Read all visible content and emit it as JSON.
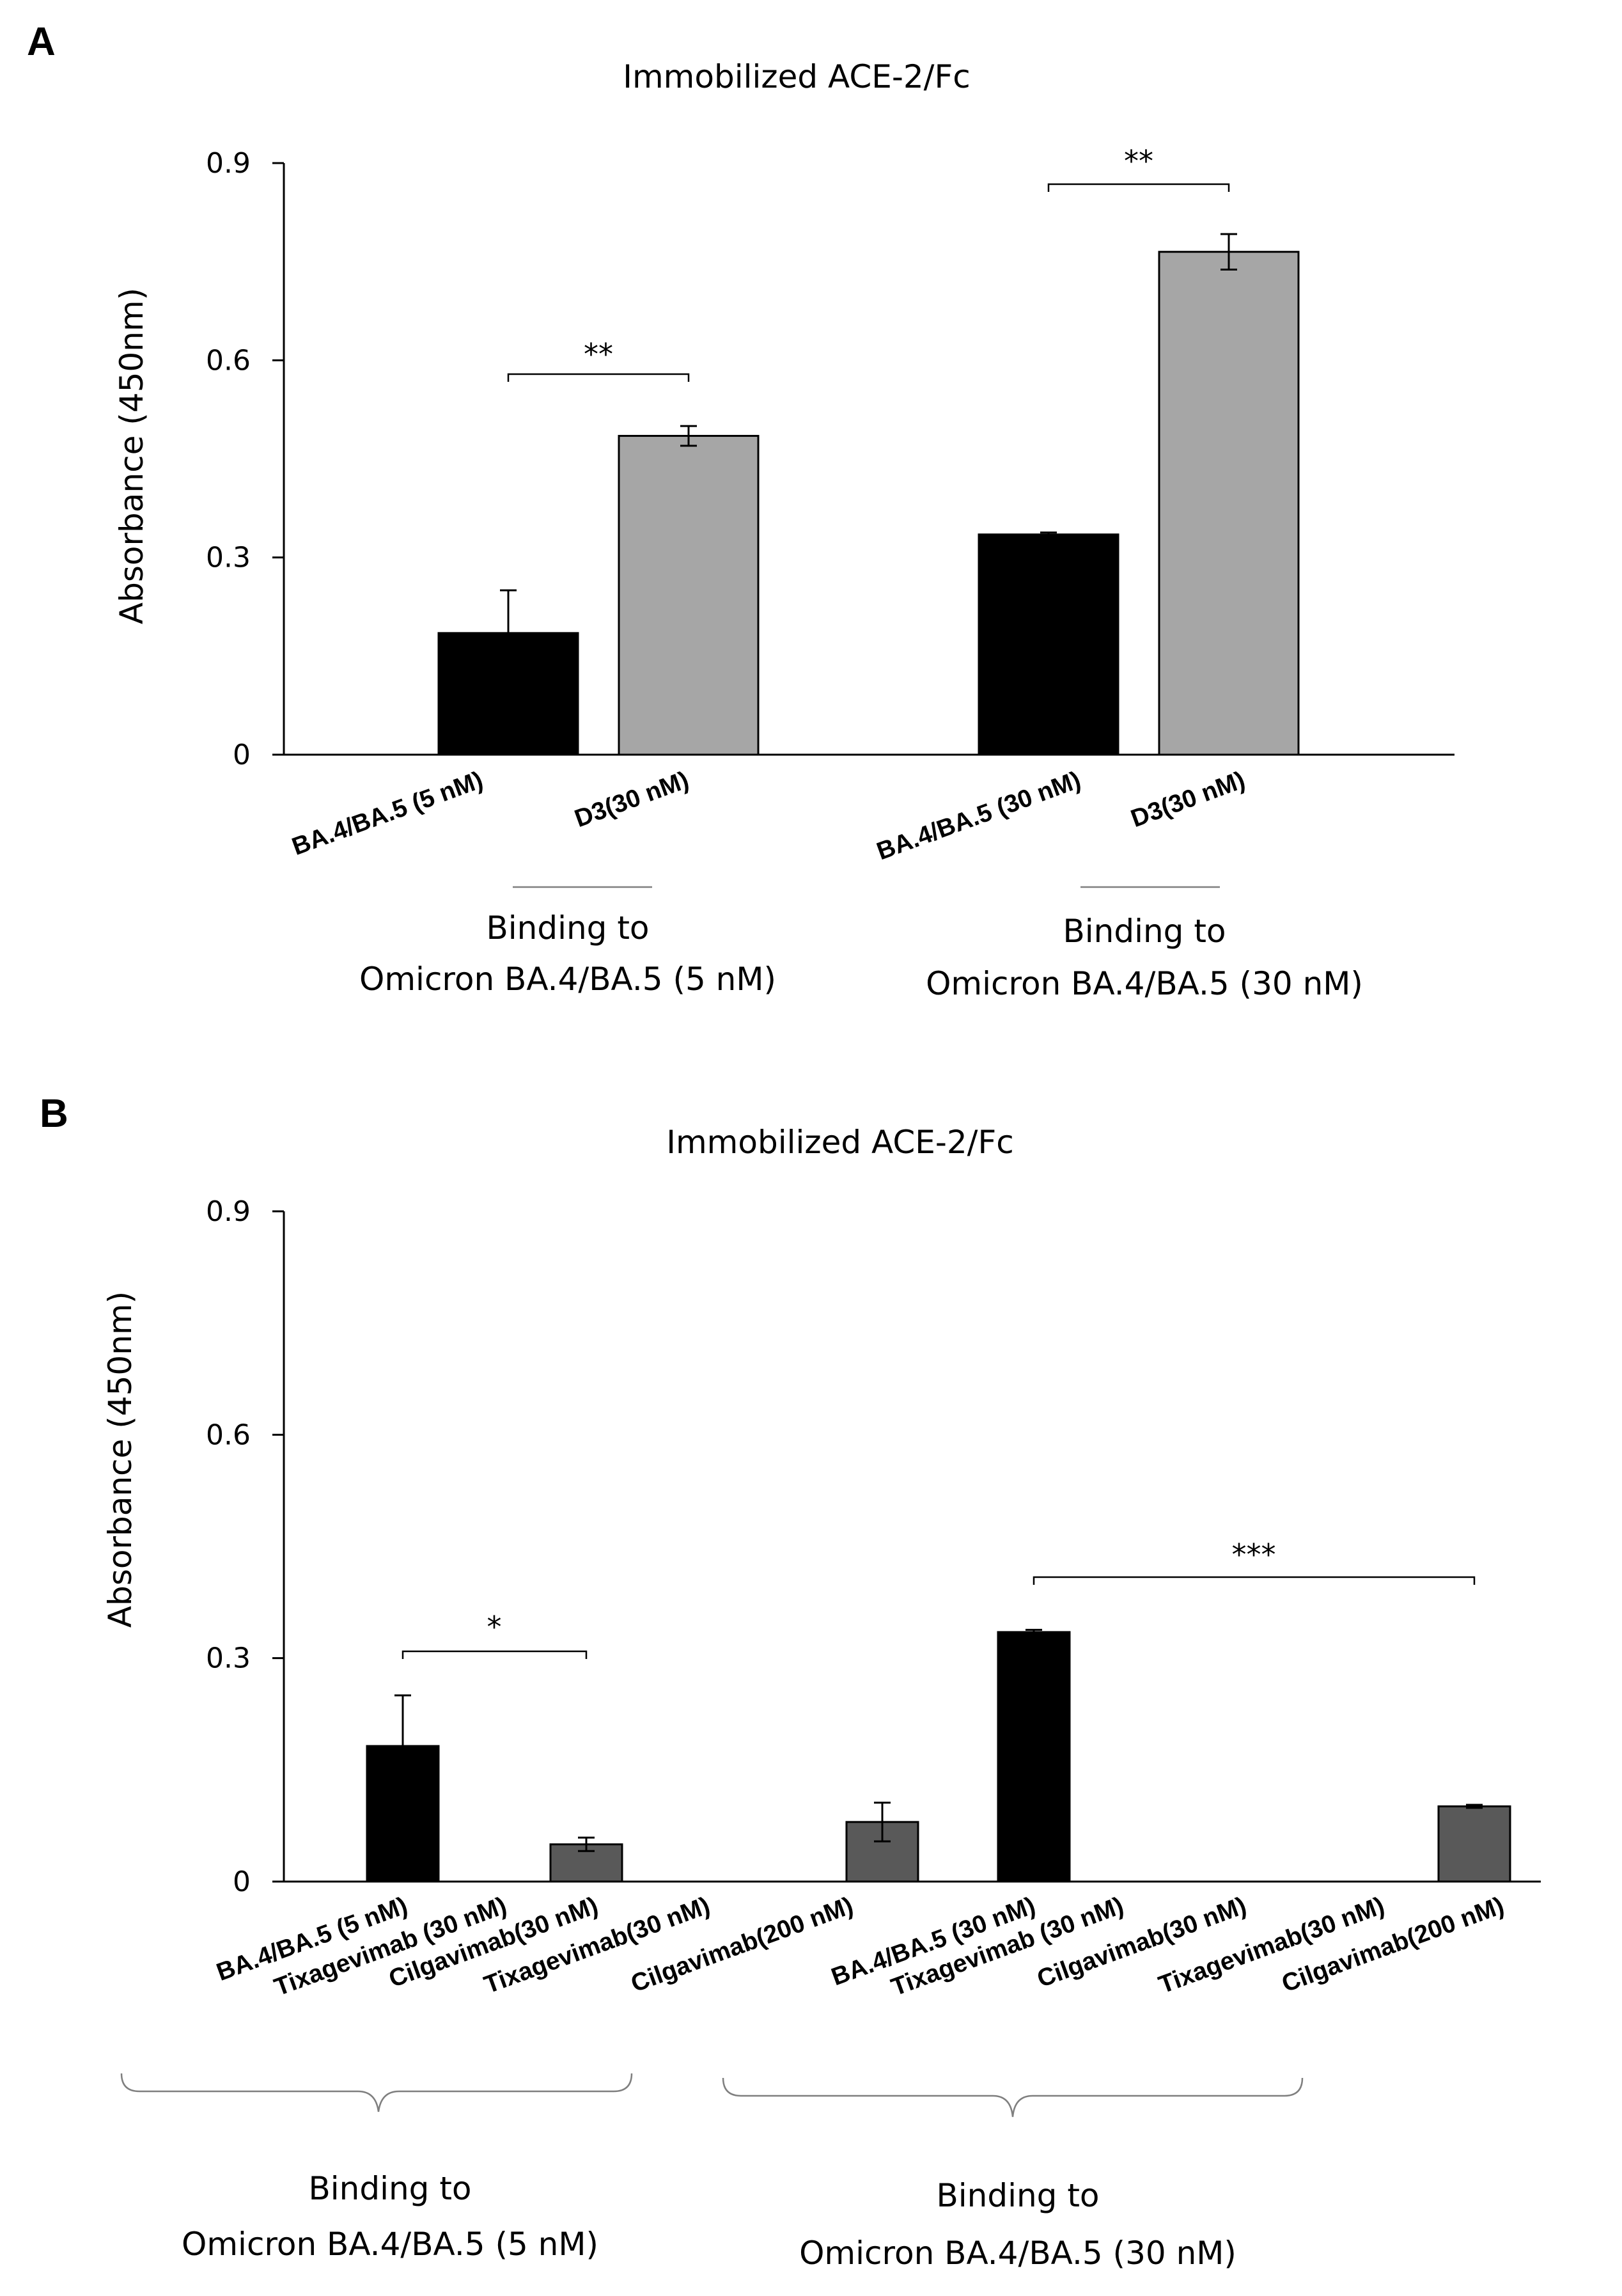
{
  "chart_data": [
    {
      "panel": "A",
      "type": "bar",
      "title": "Immobilized ACE-2/Fc",
      "ylabel": "Absorbance (450nm)",
      "ylim": [
        0,
        0.9
      ],
      "yticks": [
        "0",
        "0.3",
        "0.6",
        "0.9"
      ],
      "categories": [
        "BA.4/BA.5 (5 nM)",
        "D3(30 nM)",
        "BA.4/BA.5 (30 nM)",
        "D3(30 nM)"
      ],
      "values": [
        0.185,
        0.485,
        0.335,
        0.765
      ],
      "errors": [
        0.065,
        0.015,
        0.003,
        0.027
      ],
      "colors": [
        "#000000",
        "#a6a6a6",
        "#000000",
        "#a6a6a6"
      ],
      "groups": [
        {
          "line1": "Binding to",
          "line2": "Omicron BA.4/BA.5 (5 nM)"
        },
        {
          "line1": "Binding to",
          "line2": "Omicron BA.4/BA.5 (30 nM)"
        }
      ],
      "significance": [
        {
          "from": 0,
          "to": 1,
          "label": "**"
        },
        {
          "from": 2,
          "to": 3,
          "label": "**"
        }
      ],
      "grid": false,
      "legend": "none"
    },
    {
      "panel": "B",
      "type": "bar",
      "title": "Immobilized ACE-2/Fc",
      "ylabel": "Absorbance (450nm)",
      "ylim": [
        0,
        0.9
      ],
      "yticks": [
        "0",
        "0.3",
        "0.6",
        "0.9"
      ],
      "categories": [
        "BA.4/BA.5 (5 nM)",
        "Tixagevimab (30 nM)",
        "Cilgavimab(30 nM)",
        "Tixagevimab(30 nM)",
        "Cilgavimab(200 nM)",
        "BA.4/BA.5 (30 nM)",
        "Tixagevimab (30 nM)",
        "Cilgavimab(30 nM)",
        "Tixagevimab(30 nM)",
        "Cilgavimab(200 nM)"
      ],
      "values": [
        0.182,
        0,
        0.05,
        0,
        0.08,
        0.335,
        0,
        0,
        0,
        0.101
      ],
      "errors": [
        0.068,
        0,
        0.009,
        0,
        0.026,
        0.003,
        0,
        0,
        0,
        0.002
      ],
      "colors": [
        "#000000",
        "#595959",
        "#595959",
        "#595959",
        "#595959",
        "#000000",
        "#595959",
        "#595959",
        "#595959",
        "#595959"
      ],
      "groups": [
        {
          "line1": "Binding to",
          "line2": "Omicron BA.4/BA.5 (5 nM)"
        },
        {
          "line1": "Binding to",
          "line2": "Omicron BA.4/BA.5 (30 nM)"
        }
      ],
      "significance": [
        {
          "from": 0,
          "to": 2,
          "label": "*"
        },
        {
          "from": 5,
          "to": 9,
          "label": "***"
        }
      ],
      "grid": false,
      "legend": "none"
    }
  ]
}
